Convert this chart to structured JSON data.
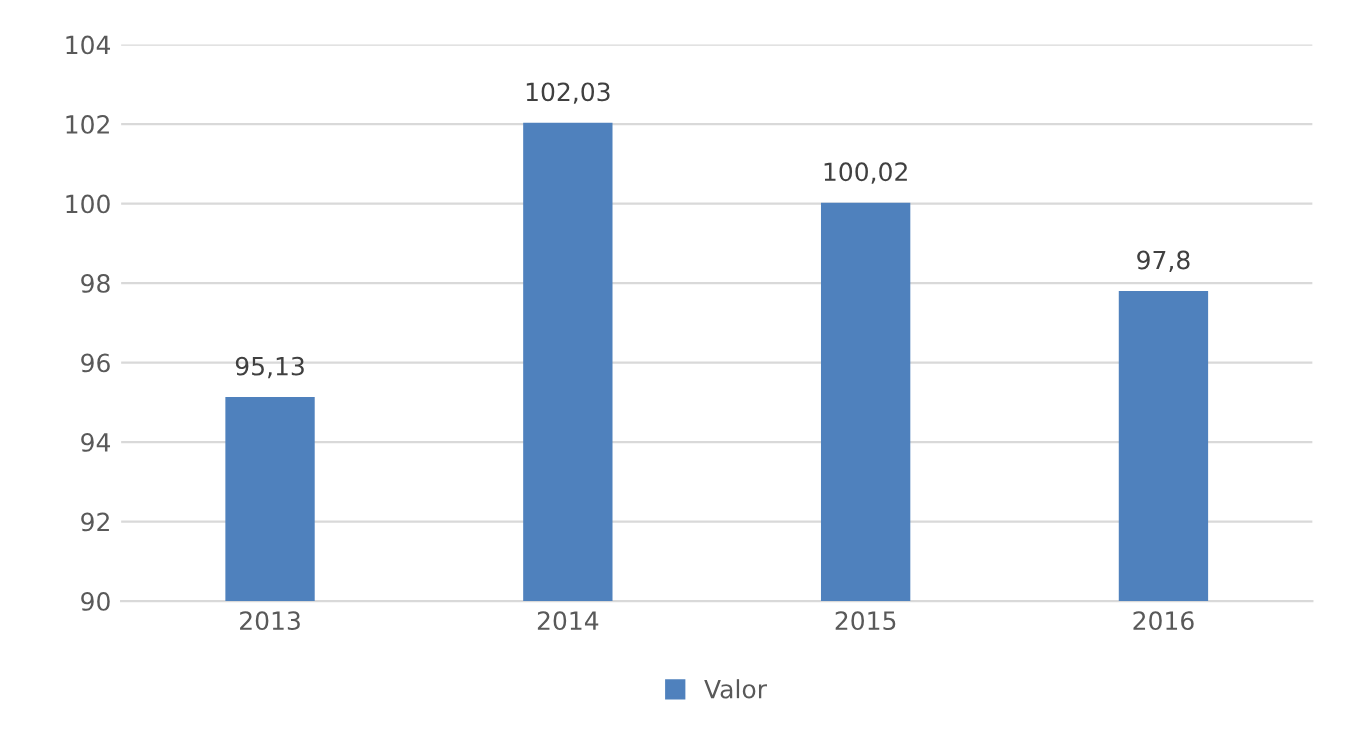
{
  "chart_data": {
    "type": "bar",
    "categories": [
      "2013",
      "2014",
      "2015",
      "2016"
    ],
    "series": [
      {
        "name": "Valor",
        "color": "#4f81bd",
        "values": [
          95.13,
          102.03,
          100.02,
          97.8
        ],
        "value_labels": [
          "95,13",
          "102,03",
          "100,02",
          "97,8"
        ]
      }
    ],
    "ylim": [
      90,
      104
    ],
    "yticks": [
      90,
      92,
      94,
      96,
      98,
      100,
      102,
      104
    ],
    "grid": "y",
    "legend": "bottom"
  }
}
